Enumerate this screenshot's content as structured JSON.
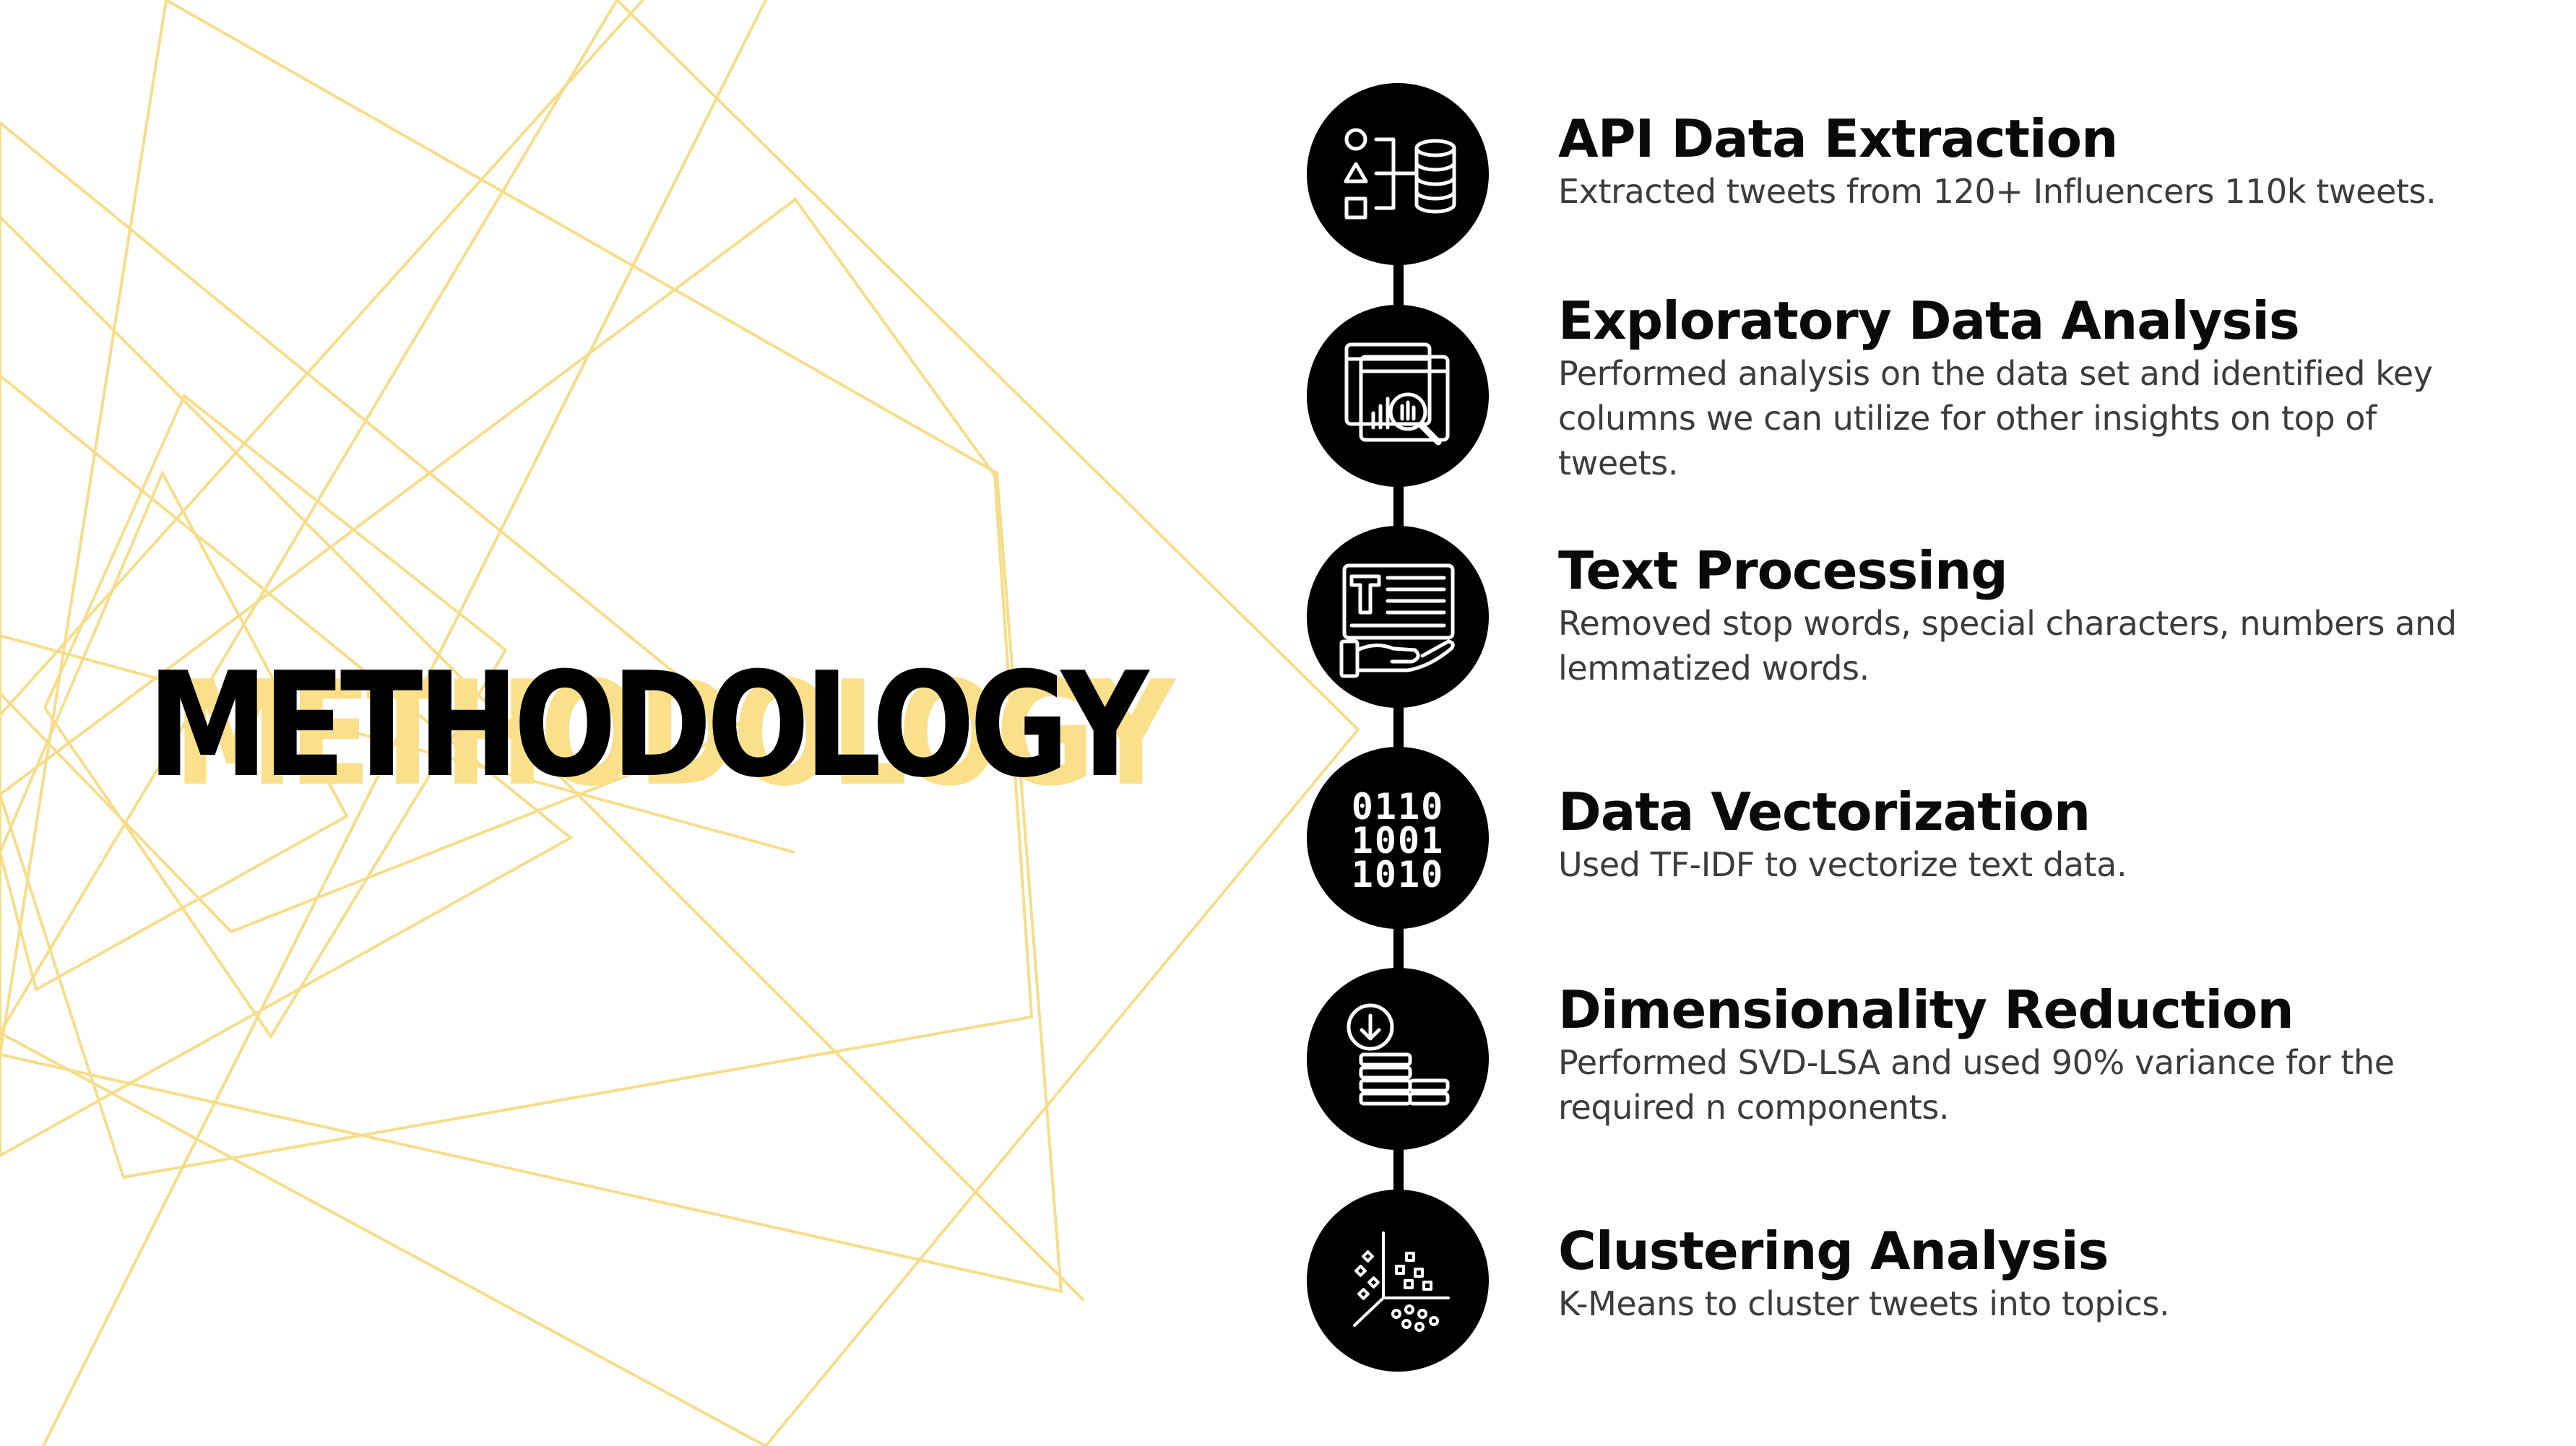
{
  "slide": {
    "title": "METHODOLOGY",
    "accent_color": "#fbe08c",
    "line_color": "#f6dd8a",
    "steps": [
      {
        "icon": "data-sources-database-icon",
        "title": "API Data Extraction",
        "description": "Extracted tweets from 120+ Influencers 110k tweets."
      },
      {
        "icon": "dashboard-magnifier-icon",
        "title": "Exploratory Data Analysis",
        "description": "Performed analysis on the data set and identified key\ncolumns we can utilize for other insights on top of\ntweets."
      },
      {
        "icon": "text-in-hand-icon",
        "title": "Text Processing",
        "description": "Removed stop words, special characters, numbers and\nlemmatized words."
      },
      {
        "icon": "binary-code-icon",
        "title": "Data Vectorization",
        "description": "Used TF-IDF to vectorize text data."
      },
      {
        "icon": "stacked-layers-download-icon",
        "title": "Dimensionality Reduction",
        "description": "Performed SVD-LSA and used 90% variance for the\nrequired n components."
      },
      {
        "icon": "scatter-cluster-icon",
        "title": "Clustering Analysis",
        "description": "K-Means to cluster tweets into topics."
      }
    ]
  }
}
